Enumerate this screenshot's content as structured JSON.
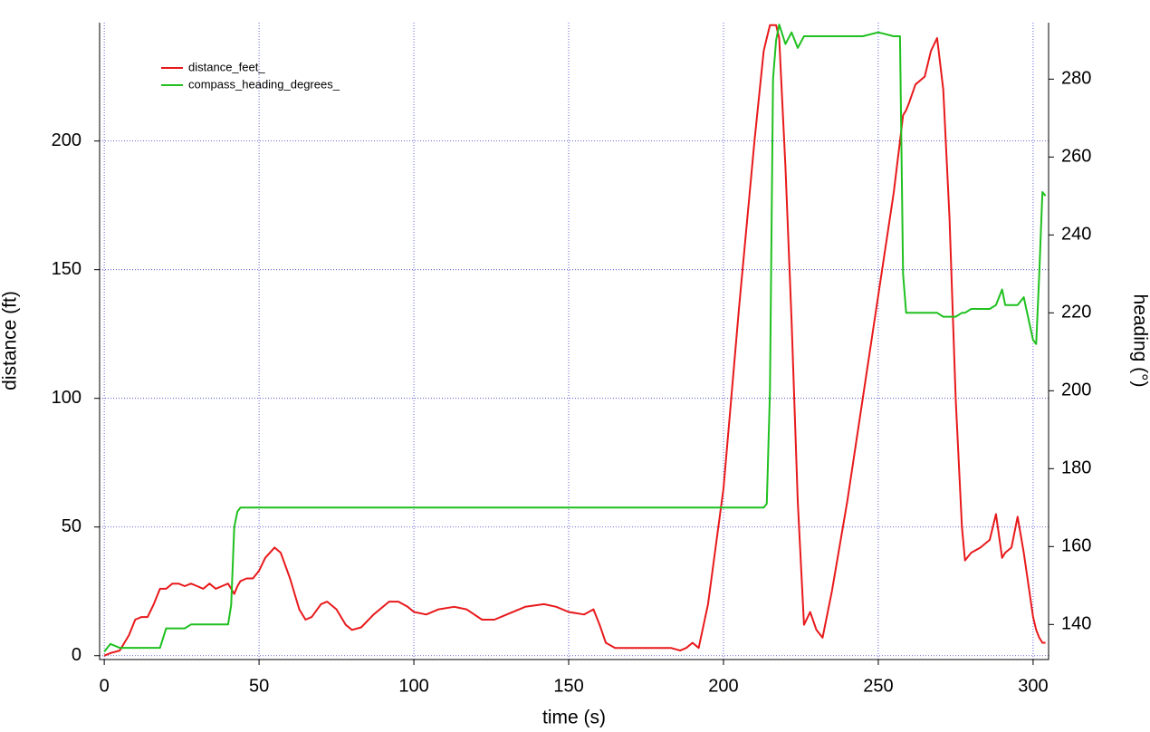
{
  "chart_data": {
    "type": "line",
    "xlabel": "time (s)",
    "ylabel": "distance (ft)",
    "y2label": "heading (°)",
    "xlim": [
      -1.5,
      305
    ],
    "ylim": [
      -1.5,
      246
    ],
    "y2lim": [
      131,
      294.5
    ],
    "xticks": [
      0,
      50,
      100,
      150,
      200,
      250,
      300
    ],
    "yticks": [
      0,
      50,
      100,
      150,
      200
    ],
    "y2ticks": [
      140,
      160,
      180,
      200,
      220,
      240,
      260,
      280
    ],
    "grid": true,
    "legend": "upper left",
    "x": [
      0,
      2,
      5,
      8,
      10,
      12,
      14,
      16,
      18,
      20,
      22,
      24,
      26,
      28,
      30,
      32,
      34,
      36,
      38,
      40,
      41,
      42,
      43,
      44,
      46,
      48,
      50,
      52,
      55,
      57,
      60,
      63,
      65,
      67,
      70,
      72,
      75,
      78,
      80,
      83,
      87,
      92,
      95,
      98,
      100,
      104,
      108,
      113,
      117,
      122,
      126,
      130,
      136,
      142,
      146,
      150,
      155,
      158,
      160,
      162,
      165,
      170,
      175,
      180,
      183,
      186,
      188,
      190,
      192,
      195,
      200,
      205,
      210,
      213,
      214,
      215,
      216,
      217,
      218,
      220,
      222,
      224,
      226,
      228,
      230,
      232,
      235,
      240,
      245,
      250,
      255,
      257,
      258,
      259,
      260,
      262,
      265,
      267,
      269,
      271,
      273,
      275,
      277,
      278,
      280,
      283,
      286,
      288,
      290,
      291,
      293,
      295,
      297,
      300,
      301,
      302,
      303,
      304
    ],
    "series": [
      {
        "name": "distance_feet_",
        "color": "#e8191b",
        "axis": "y",
        "values": [
          0,
          1,
          2,
          8,
          14,
          15,
          15,
          20,
          26,
          26,
          28,
          28,
          27,
          28,
          27,
          26,
          28,
          26,
          27,
          28,
          26,
          24,
          27,
          29,
          30,
          30,
          33,
          38,
          42,
          40,
          30,
          18,
          14,
          15,
          20,
          21,
          18,
          12,
          10,
          11,
          16,
          21,
          21,
          19,
          17,
          16,
          18,
          19,
          18,
          14,
          14,
          16,
          19,
          20,
          19,
          17,
          16,
          18,
          12,
          5,
          3,
          3,
          3,
          3,
          3,
          2,
          3,
          5,
          3,
          20,
          65,
          135,
          200,
          235,
          240,
          245,
          245,
          245,
          240,
          190,
          130,
          60,
          12,
          17,
          10,
          7,
          25,
          60,
          100,
          140,
          180,
          200,
          210,
          212,
          215,
          222,
          225,
          235,
          240,
          220,
          170,
          100,
          50,
          37,
          40,
          42,
          45,
          55,
          38,
          40,
          42,
          54,
          40,
          15,
          10,
          7,
          5,
          5
        ]
      },
      {
        "name": "compass_heading_degrees_",
        "color": "#1fc01f",
        "axis": "y2",
        "values": [
          133,
          135,
          134,
          134,
          134,
          134,
          134,
          134,
          134,
          139,
          139,
          139,
          139,
          140,
          140,
          140,
          140,
          140,
          140,
          140,
          145,
          165,
          169,
          170,
          170,
          170,
          170,
          170,
          170,
          170,
          170,
          170,
          170,
          170,
          170,
          170,
          170,
          170,
          170,
          170,
          170,
          170,
          170,
          170,
          170,
          170,
          170,
          170,
          170,
          170,
          170,
          170,
          170,
          170,
          170,
          170,
          170,
          170,
          170,
          170,
          170,
          170,
          170,
          170,
          170,
          170,
          170,
          170,
          170,
          170,
          170,
          170,
          170,
          170,
          171,
          200,
          280,
          290,
          294,
          289,
          292,
          288,
          291,
          291,
          291,
          291,
          291,
          291,
          291,
          292,
          291,
          291,
          230,
          220,
          220,
          220,
          220,
          220,
          220,
          219,
          219,
          219,
          220,
          220,
          221,
          221,
          221,
          222,
          226,
          222,
          222,
          222,
          224,
          213,
          212,
          230,
          251,
          250
        ]
      }
    ]
  }
}
